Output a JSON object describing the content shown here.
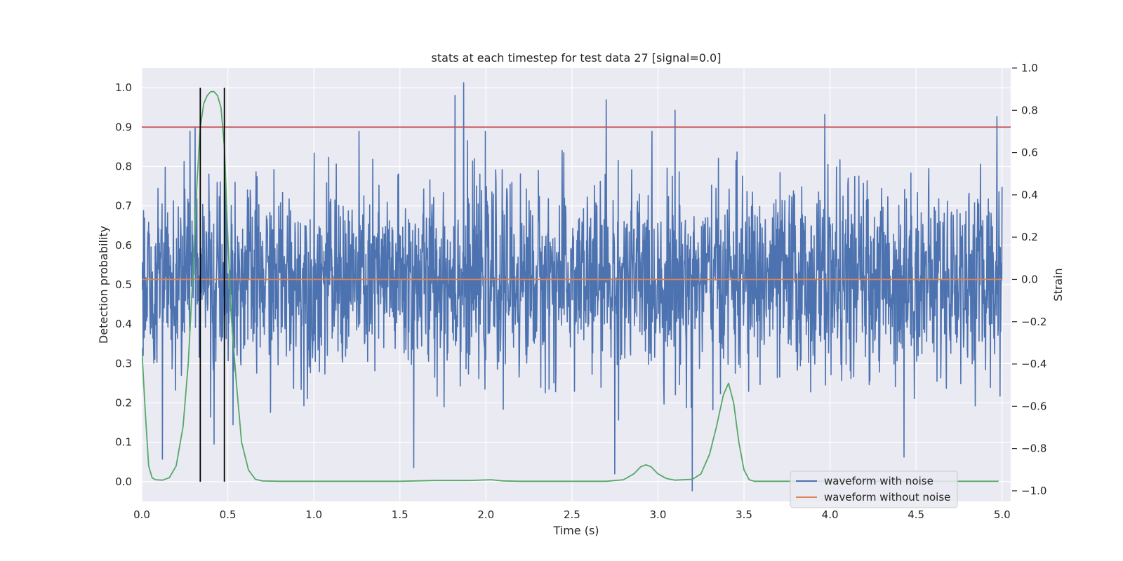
{
  "chart_data": {
    "type": "line",
    "title": "stats at each timestep for test data 27 [signal=0.0]",
    "xlabel": "Time (s)",
    "ylabel_left": "Detection probability",
    "ylabel_right": "Strain",
    "xlim": [
      0.0,
      5.05
    ],
    "ylim_left": [
      -0.05,
      1.05
    ],
    "ylim_right": [
      -1.05,
      1.0
    ],
    "x_ticks": [
      "0.0",
      "0.5",
      "1.0",
      "1.5",
      "2.0",
      "2.5",
      "3.0",
      "3.5",
      "4.0",
      "4.5",
      "5.0"
    ],
    "y_ticks_left": [
      "0.0",
      "0.1",
      "0.2",
      "0.3",
      "0.4",
      "0.5",
      "0.6",
      "0.7",
      "0.8",
      "0.9",
      "1.0"
    ],
    "y_ticks_right": [
      "−1.0",
      "−0.8",
      "−0.6",
      "−0.4",
      "−0.2",
      "0.0",
      "0.2",
      "0.4",
      "0.6",
      "0.8",
      "1.0"
    ],
    "y_tick_values_right": [
      -1.0,
      -0.8,
      -0.6,
      -0.4,
      -0.2,
      0.0,
      0.2,
      0.4,
      0.6,
      0.8,
      1.0
    ],
    "grid": true,
    "legend_position": "lower-right",
    "series": [
      {
        "name": "waveform with noise",
        "axis": "right",
        "color": "#4c72b0",
        "style": "noise",
        "x_range": [
          0.0,
          5.0
        ],
        "std": 0.22,
        "peak_points": [
          {
            "x": 0.31,
            "y": 0.72
          },
          {
            "x": 1.82,
            "y": 0.87
          },
          {
            "x": 1.87,
            "y": 0.93
          },
          {
            "x": 2.7,
            "y": 0.85
          },
          {
            "x": 3.1,
            "y": 0.8
          },
          {
            "x": 3.97,
            "y": 0.78
          },
          {
            "x": 4.97,
            "y": 0.77
          },
          {
            "x": 1.58,
            "y": -0.89
          },
          {
            "x": 2.75,
            "y": -0.92
          },
          {
            "x": 3.2,
            "y": -1.0
          },
          {
            "x": 0.12,
            "y": -0.85
          },
          {
            "x": 4.43,
            "y": -0.84
          }
        ]
      },
      {
        "name": "waveform without noise",
        "axis": "right",
        "color": "#dd8452",
        "x": [
          0.0,
          5.0
        ],
        "y": [
          0.0,
          0.0
        ]
      },
      {
        "name": "",
        "axis": "left",
        "color": "#55a868",
        "x": [
          0.0,
          0.02,
          0.04,
          0.06,
          0.08,
          0.12,
          0.16,
          0.2,
          0.24,
          0.27,
          0.3,
          0.32,
          0.34,
          0.36,
          0.38,
          0.4,
          0.42,
          0.44,
          0.46,
          0.48,
          0.5,
          0.52,
          0.55,
          0.58,
          0.62,
          0.66,
          0.7,
          0.8,
          1.0,
          1.5,
          1.7,
          1.9,
          2.03,
          2.1,
          2.2,
          2.5,
          2.7,
          2.8,
          2.86,
          2.9,
          2.93,
          2.96,
          3.0,
          3.05,
          3.1,
          3.2,
          3.25,
          3.3,
          3.34,
          3.38,
          3.41,
          3.44,
          3.47,
          3.5,
          3.53,
          3.56,
          3.6,
          3.8,
          4.2,
          4.6,
          4.98
        ],
        "y": [
          0.34,
          0.18,
          0.04,
          0.01,
          0.005,
          0.004,
          0.01,
          0.04,
          0.14,
          0.3,
          0.55,
          0.75,
          0.9,
          0.96,
          0.98,
          0.99,
          0.99,
          0.98,
          0.95,
          0.85,
          0.62,
          0.42,
          0.25,
          0.1,
          0.03,
          0.006,
          0.002,
          0.001,
          0.001,
          0.001,
          0.003,
          0.003,
          0.005,
          0.002,
          0.001,
          0.001,
          0.001,
          0.005,
          0.02,
          0.038,
          0.043,
          0.038,
          0.02,
          0.008,
          0.004,
          0.006,
          0.02,
          0.07,
          0.14,
          0.22,
          0.25,
          0.2,
          0.1,
          0.03,
          0.005,
          0.001,
          0.001,
          0.001,
          0.001,
          0.001,
          0.001
        ]
      }
    ],
    "hlines": [
      {
        "axis": "left",
        "y": 0.9,
        "color": "#c44e52"
      }
    ],
    "vlines": [
      {
        "x": 0.34,
        "ymin": 0.0,
        "ymax": 1.0,
        "color": "#000000"
      },
      {
        "x": 0.48,
        "ymin": 0.0,
        "ymax": 1.0,
        "color": "#000000"
      }
    ]
  }
}
